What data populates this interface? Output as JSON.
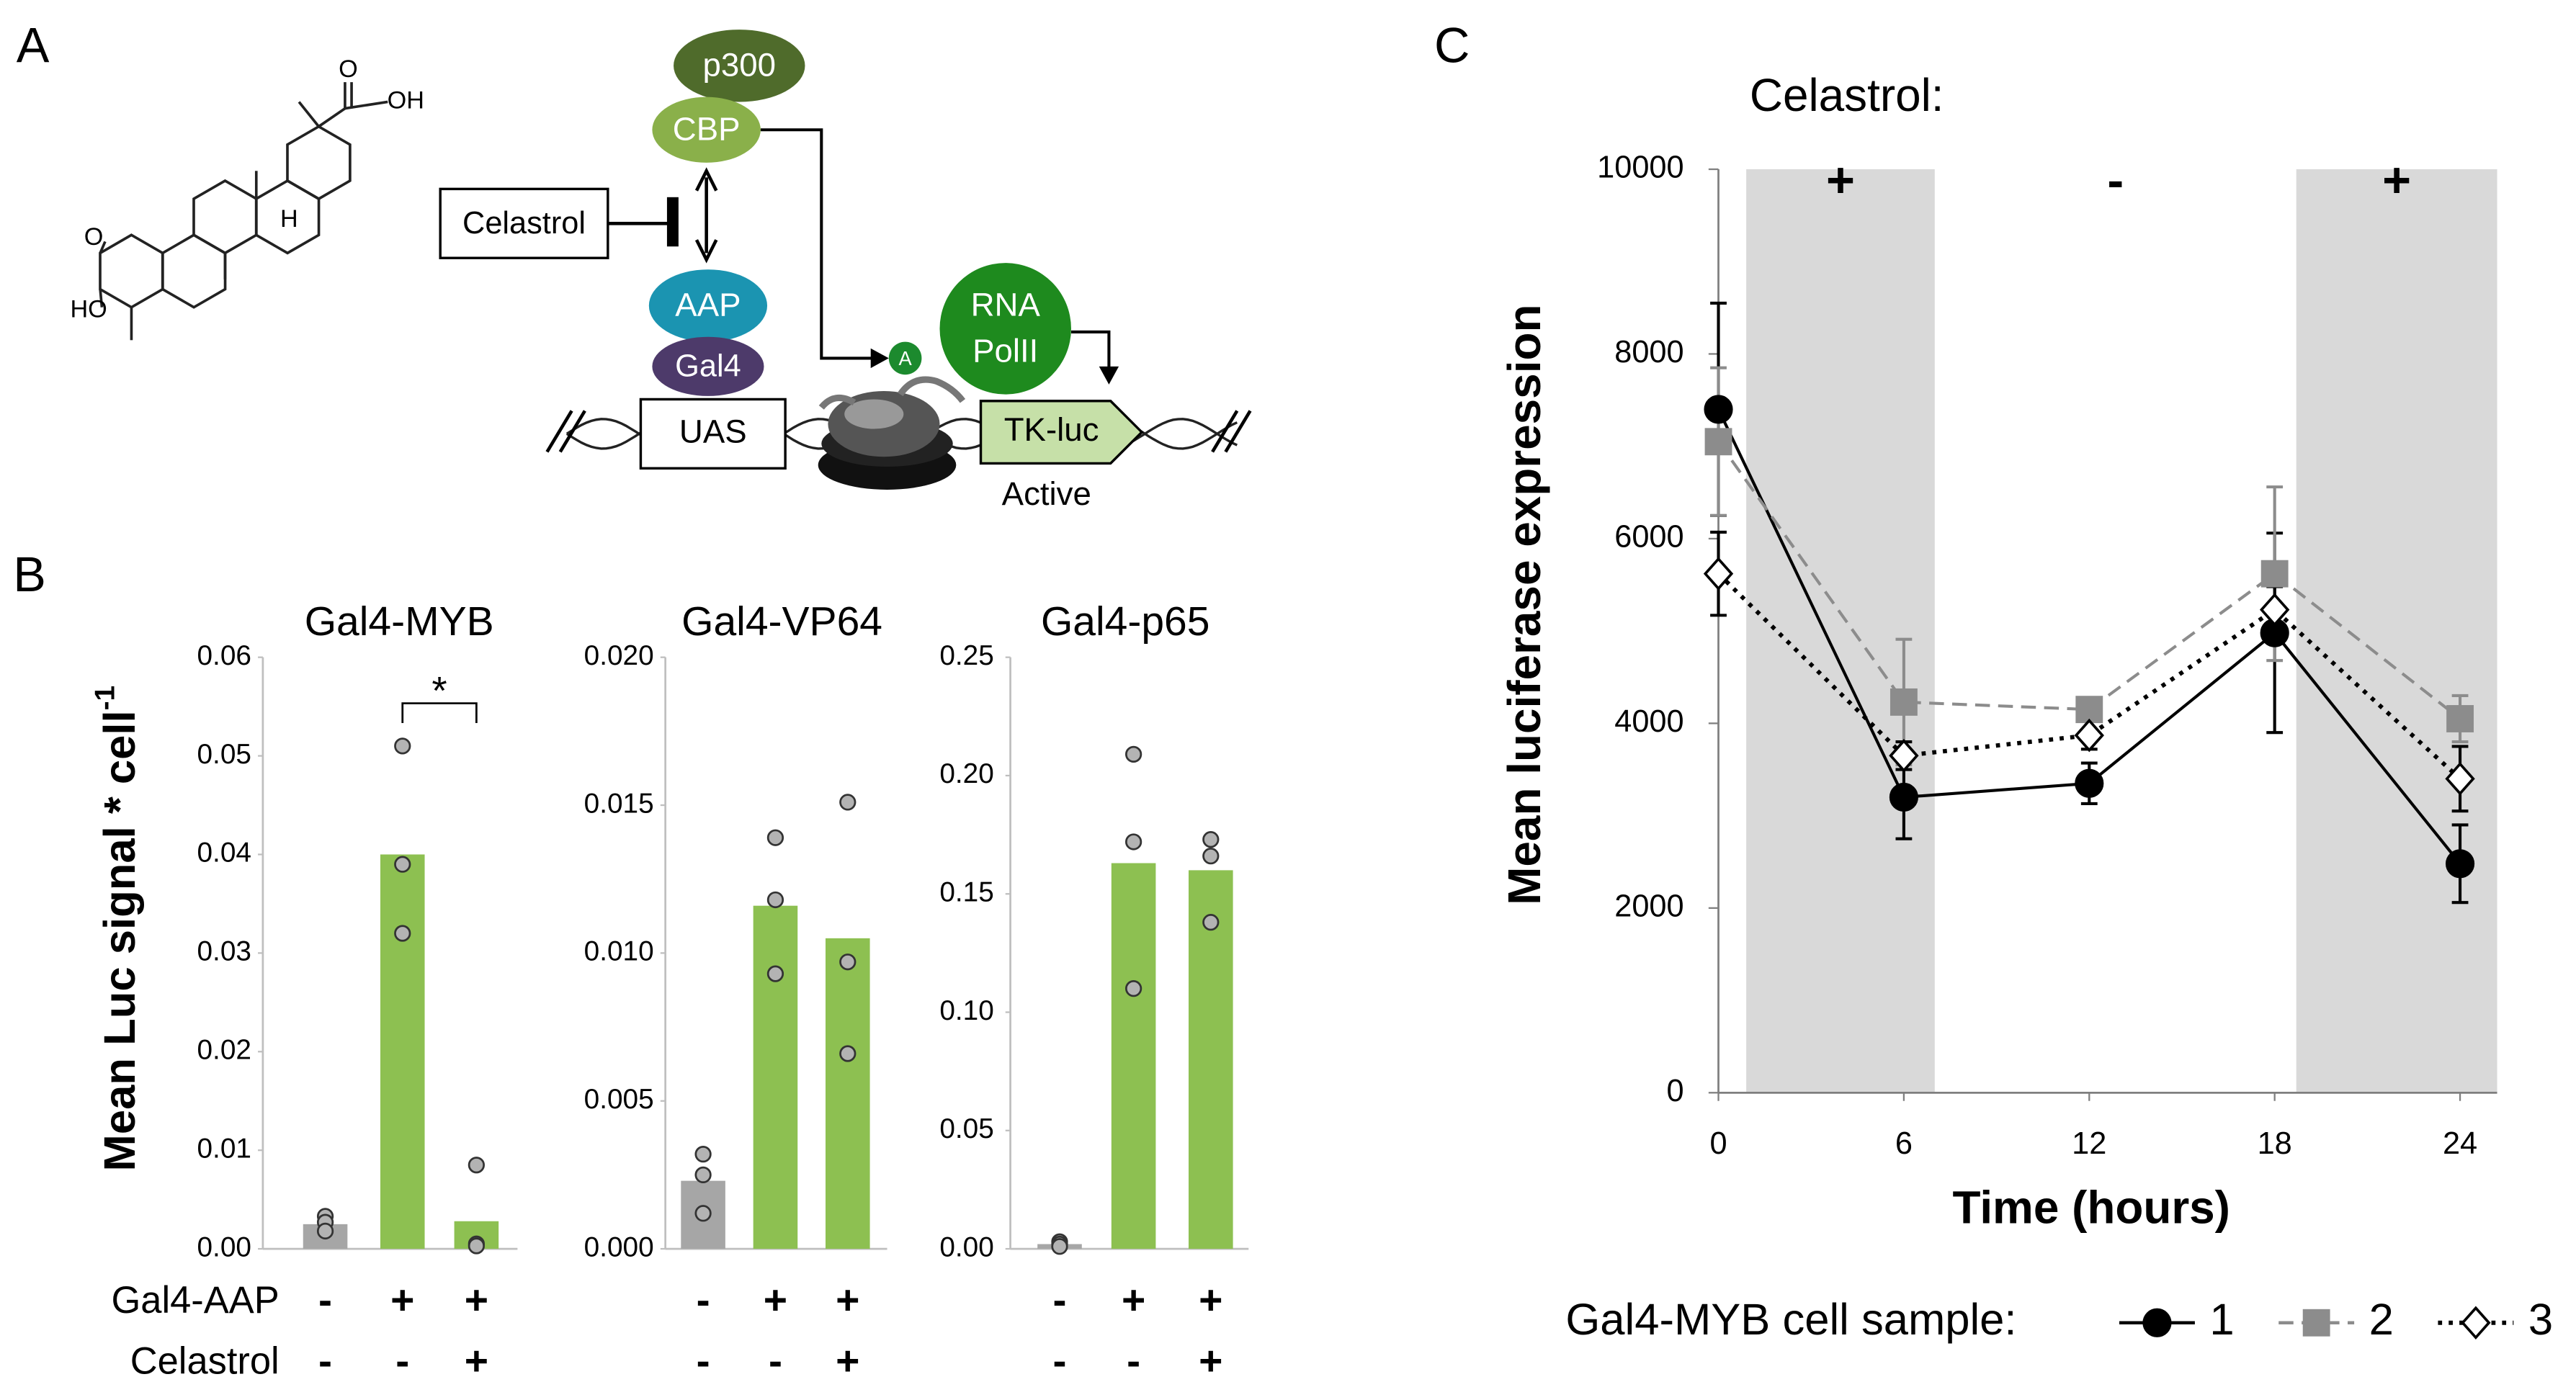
{
  "panel_labels": [
    "A",
    "B",
    "C"
  ],
  "structure": {
    "labels": [
      "O",
      "OH",
      "O",
      "HO",
      "H"
    ]
  },
  "diagram": {
    "p300": "p300",
    "cbp": "CBP",
    "celastrol": "Celastrol",
    "aap": "AAP",
    "gal4": "Gal4",
    "acetyl": "A",
    "rna_pol": [
      "RNA",
      "PolII"
    ],
    "uas": "UAS",
    "tk_luc": "TK-luc",
    "state": "Active"
  },
  "panel_b": {
    "conditions": [
      {
        "name": "Gal4-AAP",
        "signs": [
          "-",
          "+",
          "+"
        ]
      },
      {
        "name": "Celastrol",
        "signs": [
          "-",
          "-",
          "+"
        ]
      }
    ]
  },
  "chart_data": [
    {
      "type": "bar",
      "title": "Gal4-MYB",
      "ylabel": "Mean Luc signal * cell",
      "ylabel_superscript": "-1",
      "values": [
        0.0025,
        0.04,
        0.0028
      ],
      "colors": [
        "#a6a6a6",
        "#8dc051",
        "#8dc051"
      ],
      "points": [
        [
          0.0033,
          0.0027,
          0.0018
        ],
        [
          0.051,
          0.039,
          0.032
        ],
        [
          0.0085,
          0.0005,
          0.0003
        ]
      ],
      "point_color": "#b3b3b3",
      "annotation": "*",
      "ylim": [
        0,
        0.06
      ],
      "yticks": [
        {
          "value": 0,
          "label": "0.00"
        },
        0.01,
        0.02,
        0.03,
        0.04,
        0.05,
        0.06
      ]
    },
    {
      "type": "bar",
      "title": "Gal4-VP64",
      "values": [
        0.0023,
        0.0116,
        0.0105
      ],
      "colors": [
        "#a6a6a6",
        "#8dc051",
        "#8dc051"
      ],
      "points": [
        [
          0.0032,
          0.0025,
          0.0012
        ],
        [
          0.0139,
          0.0118,
          0.0093
        ],
        [
          0.0151,
          0.0097,
          0.0066
        ]
      ],
      "point_color": "#b3b3b3",
      "ylim": [
        0,
        0.02
      ],
      "yticks": [
        {
          "value": 0,
          "label": "0.000"
        },
        0.005,
        {
          "value": 0.01,
          "label": "0.010"
        },
        0.015,
        {
          "value": 0.02,
          "label": "0.020"
        }
      ]
    },
    {
      "type": "bar",
      "title": "Gal4-p65",
      "values": [
        0.002,
        0.163,
        0.16
      ],
      "colors": [
        "#a6a6a6",
        "#8dc051",
        "#8dc051"
      ],
      "points": [
        [
          0.003,
          0.002,
          0.001
        ],
        [
          0.209,
          0.172,
          0.11
        ],
        [
          0.173,
          0.166,
          0.138
        ]
      ],
      "point_color": "#b3b3b3",
      "ylim": [
        0,
        0.25
      ],
      "yticks": [
        {
          "value": 0,
          "label": "0.00"
        },
        0.05,
        {
          "value": 0.1,
          "label": "0.10"
        },
        0.15,
        {
          "value": 0.2,
          "label": "0.20"
        },
        0.25
      ]
    },
    {
      "type": "line",
      "header": "Celastrol:",
      "xlabel": "Time (hours)",
      "ylabel": "Mean luciferase expression",
      "x": [
        0,
        6,
        12,
        18,
        24
      ],
      "periods": [
        {
          "from": 0.9,
          "to": 7,
          "label": "+",
          "shaded": true
        },
        {
          "from": 7,
          "to": 18.7,
          "label": "-",
          "shaded": false
        },
        {
          "from": 18.7,
          "to": 25.2,
          "label": "+",
          "shaded": true
        }
      ],
      "shade_color": "#d9d9d9",
      "series": [
        {
          "name": "1",
          "color": "#000000",
          "marker": "circle",
          "marker_fill": "#000000",
          "line_style": "solid",
          "values": [
            7400,
            3200,
            3350,
            4980,
            2480
          ],
          "errors": [
            1150,
            450,
            220,
            1080,
            420
          ]
        },
        {
          "name": "2",
          "color": "#8c8c8c",
          "marker": "square",
          "marker_fill": "#8c8c8c",
          "line_style": "dashed",
          "values": [
            7050,
            4230,
            4150,
            5620,
            4050
          ],
          "errors": [
            800,
            680,
            80,
            940,
            250
          ]
        },
        {
          "name": "3",
          "color": "#000000",
          "marker": "diamond",
          "marker_fill": "#ffffff",
          "line_style": "dotted",
          "values": [
            5620,
            3650,
            3870,
            5230,
            3400
          ],
          "errors": [
            450,
            150,
            150,
            250,
            350
          ]
        }
      ],
      "legend_title": "Gal4-MYB cell sample:",
      "legend": "bottom",
      "xlim": [
        0,
        25.2
      ],
      "xticks": [
        0,
        6,
        12,
        18,
        24
      ],
      "ylim": [
        0,
        10000
      ],
      "yticks": [
        0,
        2000,
        4000,
        6000,
        8000,
        10000
      ]
    }
  ]
}
